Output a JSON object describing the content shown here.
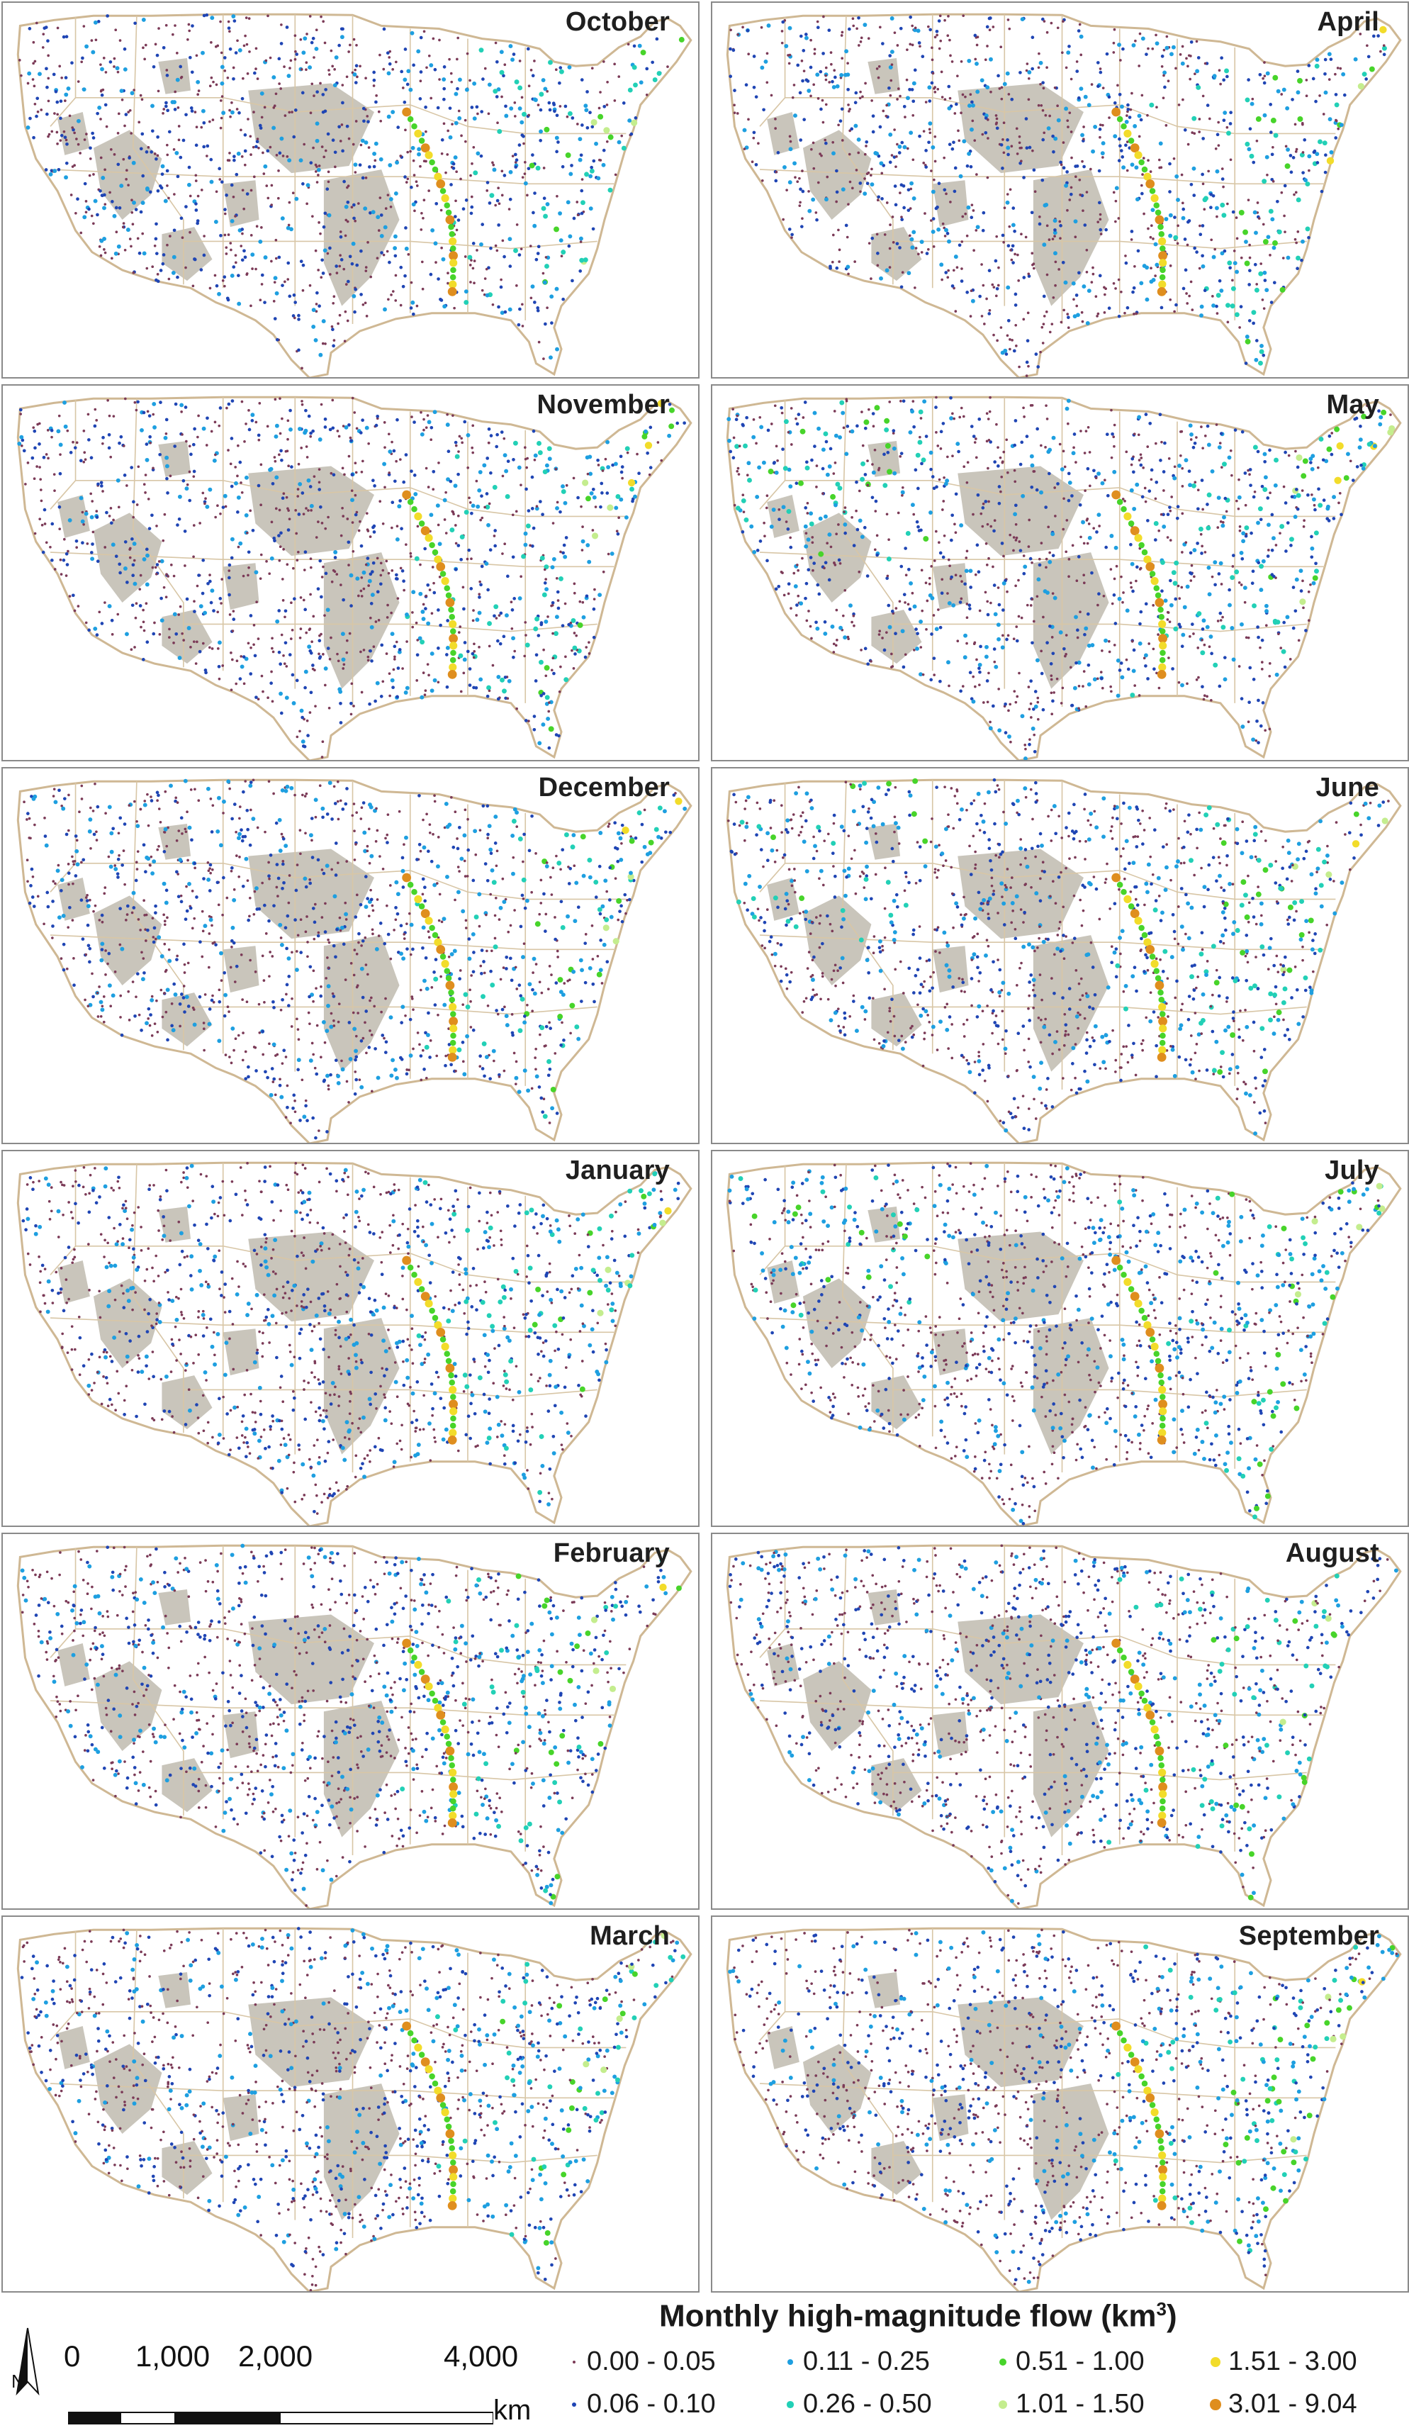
{
  "figure": {
    "panels": [
      {
        "month": "October"
      },
      {
        "month": "April"
      },
      {
        "month": "November"
      },
      {
        "month": "May"
      },
      {
        "month": "December"
      },
      {
        "month": "June"
      },
      {
        "month": "January"
      },
      {
        "month": "July"
      },
      {
        "month": "February"
      },
      {
        "month": "August"
      },
      {
        "month": "March"
      },
      {
        "month": "September"
      }
    ]
  },
  "scale": {
    "ticks": [
      "0",
      "1,000",
      "2,000",
      "4,000"
    ],
    "unit": "km"
  },
  "north_arrow": {
    "label": "N",
    "icon": "north-arrow-icon"
  },
  "legend": {
    "title_main": "Monthly high-magnitude flow (km",
    "title_sup": "3",
    "title_end": ")",
    "classes": [
      {
        "label": "0.00 - 0.05",
        "color": "#7b3a57"
      },
      {
        "label": "0.06 - 0.10",
        "color": "#1f45b4"
      },
      {
        "label": "0.11 - 0.25",
        "color": "#1e9fe0"
      },
      {
        "label": "0.26 - 0.50",
        "color": "#22d0b6"
      },
      {
        "label": "0.51 - 1.00",
        "color": "#47d42a"
      },
      {
        "label": "1.01 - 1.50",
        "color": "#c4ed8e"
      },
      {
        "label": "1.51 - 3.00",
        "color": "#f2dc2a"
      },
      {
        "label": "3.01 - 9.04",
        "color": "#df8e1e"
      }
    ]
  },
  "map_style": {
    "land": "#ffffff",
    "outline": "#cfb894",
    "state_lines": "#d8c6a6",
    "dry_regions": "#c9c5bb"
  }
}
